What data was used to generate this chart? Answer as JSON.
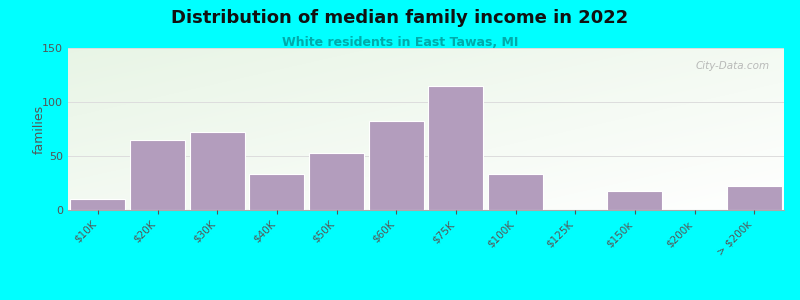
{
  "title": "Distribution of median family income in 2022",
  "subtitle": "White residents in East Tawas, MI",
  "ylabel": "families",
  "background_outer": "#00FFFF",
  "bar_color": "#b39dbd",
  "bar_edge_color": "#ffffff",
  "categories": [
    "$10K",
    "$20K",
    "$30K",
    "$40K",
    "$50K",
    "$60K",
    "$75K",
    "$100K",
    "$125K",
    "$150k",
    "$200k",
    "> $200k"
  ],
  "values": [
    10,
    65,
    72,
    33,
    53,
    82,
    115,
    33,
    0,
    18,
    0,
    22
  ],
  "ylim": [
    0,
    150
  ],
  "yticks": [
    0,
    50,
    100,
    150
  ],
  "watermark": "City-Data.com",
  "plot_bg_colors": [
    "#e8f5e2",
    "#f8fff8"
  ],
  "grid_color": "#dddddd",
  "title_color": "#111111",
  "subtitle_color": "#00aaaa",
  "tick_color": "#555555",
  "ylabel_color": "#555555"
}
